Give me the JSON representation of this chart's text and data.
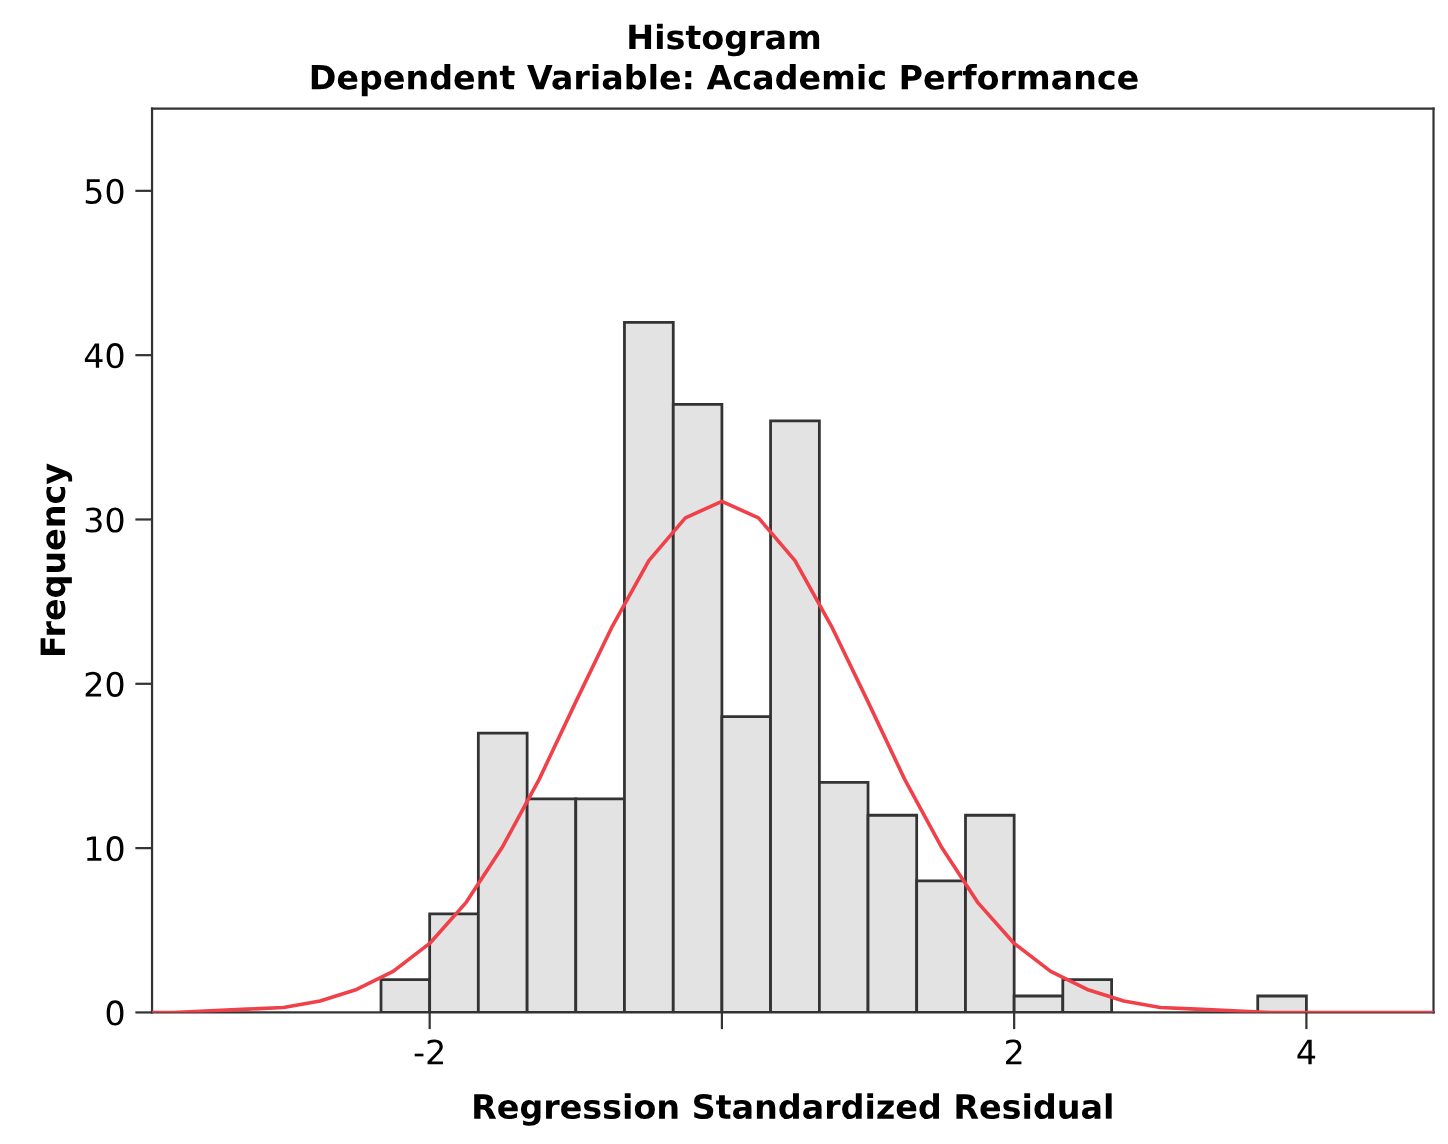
{
  "chart_data": {
    "type": "histogram",
    "title": "Histogram",
    "subtitle": "Dependent Variable: Academic Performance",
    "xlabel": "Regression Standardized Residual",
    "ylabel": "Frequency",
    "bins": [
      -2.333,
      -2.0,
      -1.667,
      -1.333,
      -1.0,
      -0.667,
      -0.333,
      0.0,
      0.333,
      0.667,
      1.0,
      1.333,
      1.667,
      2.0,
      2.333,
      2.667,
      3.0,
      3.333,
      3.667,
      4.0
    ],
    "values": [
      2,
      6,
      17,
      13,
      13,
      42,
      37,
      18,
      36,
      14,
      12,
      8,
      12,
      1,
      2,
      0,
      0,
      0,
      1
    ],
    "color": "#e3e3e3",
    "series": [
      {
        "type": "line",
        "color": "#f0404a",
        "x": [
          -3.9,
          -3.75,
          -3.5,
          -3.25,
          -3.0,
          -2.75,
          -2.5,
          -2.25,
          -2.0,
          -1.75,
          -1.5,
          -1.25,
          -1.0,
          -0.75,
          -0.5,
          -0.25,
          0.0,
          0.25,
          0.5,
          0.75,
          1.0,
          1.25,
          1.5,
          1.75,
          2.0,
          2.25,
          2.5,
          2.75,
          3.0,
          3.25,
          3.5,
          3.75,
          4.0,
          4.25,
          4.5,
          4.87
        ],
        "values": [
          0.0,
          0.0,
          0.1,
          0.2,
          0.3,
          0.7,
          1.4,
          2.5,
          4.2,
          6.7,
          10.1,
          14.2,
          18.9,
          23.5,
          27.5,
          30.1,
          31.1,
          30.1,
          27.5,
          23.5,
          18.9,
          14.2,
          10.1,
          6.7,
          4.2,
          2.5,
          1.4,
          0.7,
          0.3,
          0.2,
          0.1,
          0.0,
          0.0,
          0.0,
          0.0,
          0.0
        ]
      }
    ],
    "xlim": [
      -3.9,
      4.87
    ],
    "ylim": [
      0,
      55
    ],
    "xticks": [
      -2,
      {
        "value": 0,
        "label": null
      },
      2,
      4
    ],
    "yticks": [
      0,
      10,
      20,
      30,
      40,
      50
    ],
    "grid": false,
    "legend": false
  }
}
